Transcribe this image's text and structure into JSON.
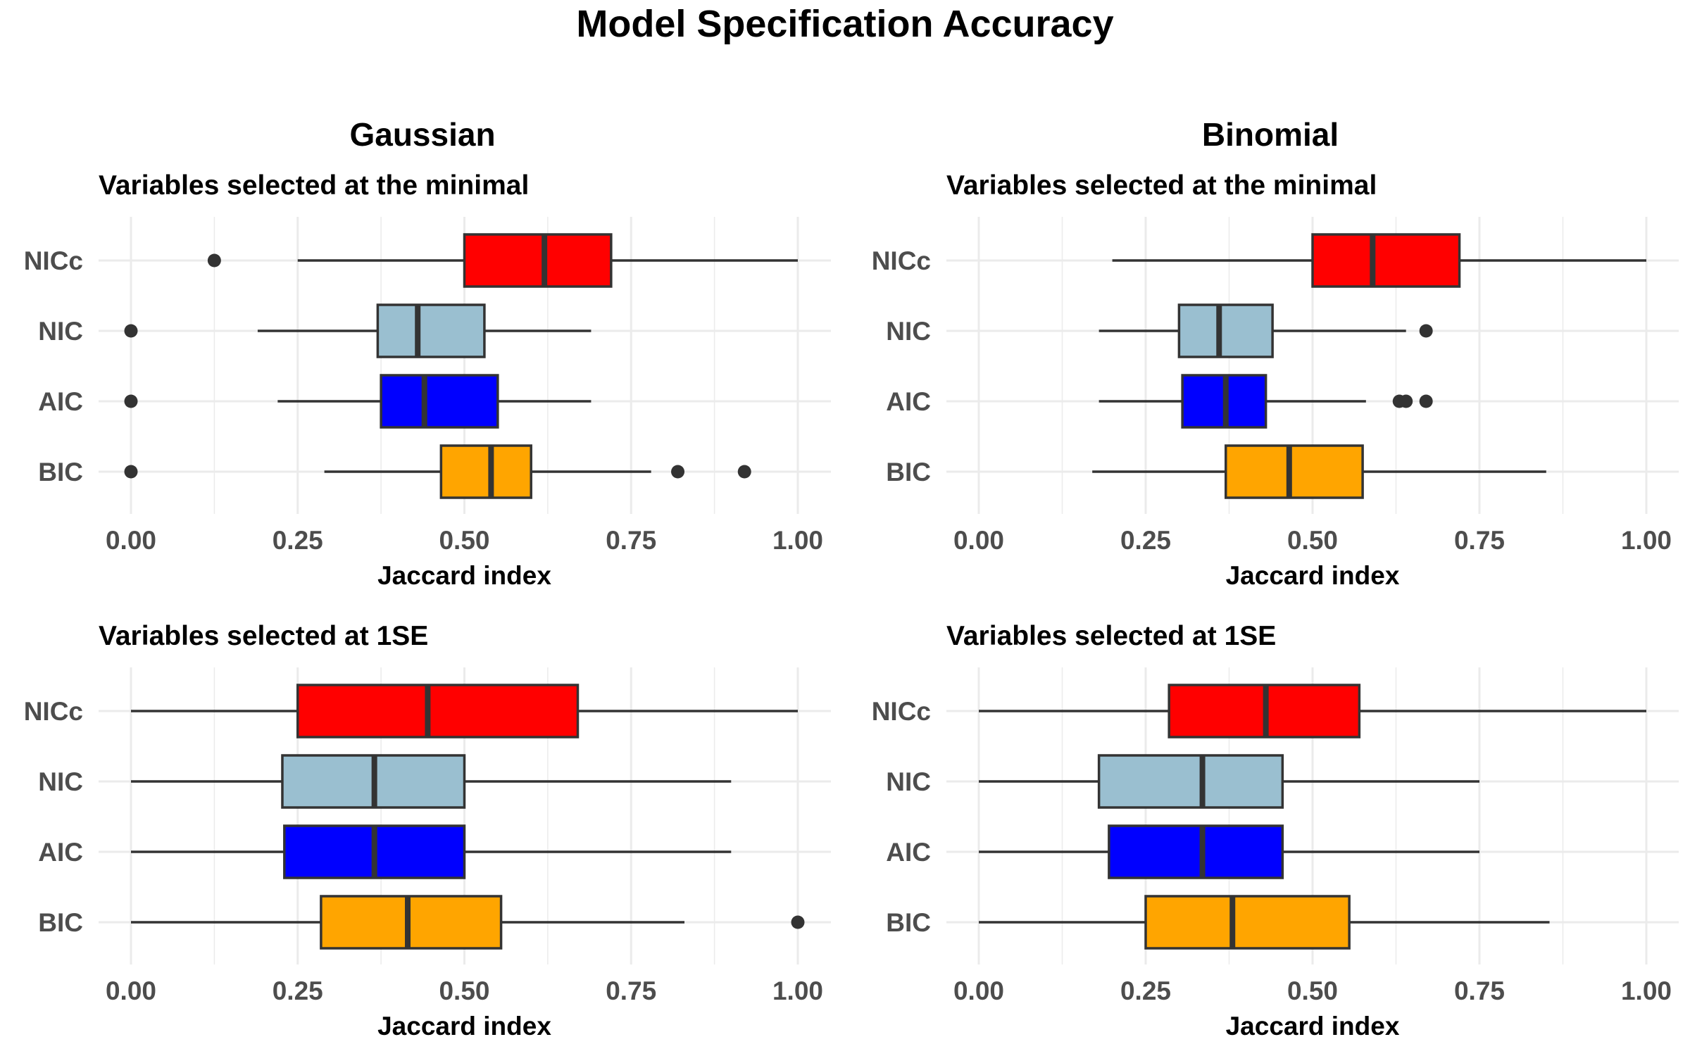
{
  "title": "Model Specification Accuracy",
  "columns": [
    "Gaussian",
    "Binomial"
  ],
  "colors": {
    "NICc": "#ff0000",
    "NIC": "#9abfd0",
    "AIC": "#0000ff",
    "BIC": "#ffa500",
    "stroke": "#333333",
    "grid": "#ebebeb",
    "outlier": "#333333"
  },
  "chart_data": [
    {
      "type": "boxplot",
      "column": "Gaussian",
      "title": "Variables selected at the minimal",
      "xlabel": "Jaccard index",
      "ylabel": "",
      "xlim": [
        0,
        1
      ],
      "xticks": [
        "0.00",
        "0.25",
        "0.50",
        "0.75",
        "1.00"
      ],
      "categories": [
        "NICc",
        "NIC",
        "AIC",
        "BIC"
      ],
      "boxes": [
        {
          "name": "NICc",
          "whisker_low": 0.25,
          "q1": 0.5,
          "median": 0.62,
          "q3": 0.72,
          "whisker_high": 1.0,
          "outliers": [
            0.125
          ]
        },
        {
          "name": "NIC",
          "whisker_low": 0.19,
          "q1": 0.37,
          "median": 0.43,
          "q3": 0.53,
          "whisker_high": 0.69,
          "outliers": [
            0.0
          ]
        },
        {
          "name": "AIC",
          "whisker_low": 0.22,
          "q1": 0.375,
          "median": 0.44,
          "q3": 0.55,
          "whisker_high": 0.69,
          "outliers": [
            0.0
          ]
        },
        {
          "name": "BIC",
          "whisker_low": 0.29,
          "q1": 0.465,
          "median": 0.54,
          "q3": 0.6,
          "whisker_high": 0.78,
          "outliers": [
            0.0,
            0.82,
            0.92
          ]
        }
      ]
    },
    {
      "type": "boxplot",
      "column": "Binomial",
      "title": "Variables selected at the minimal",
      "xlabel": "Jaccard index",
      "ylabel": "",
      "xlim": [
        0,
        1
      ],
      "xticks": [
        "0.00",
        "0.25",
        "0.50",
        "0.75",
        "1.00"
      ],
      "categories": [
        "NICc",
        "NIC",
        "AIC",
        "BIC"
      ],
      "boxes": [
        {
          "name": "NICc",
          "whisker_low": 0.2,
          "q1": 0.5,
          "median": 0.59,
          "q3": 0.72,
          "whisker_high": 1.0,
          "outliers": []
        },
        {
          "name": "NIC",
          "whisker_low": 0.18,
          "q1": 0.3,
          "median": 0.36,
          "q3": 0.44,
          "whisker_high": 0.64,
          "outliers": [
            0.67
          ]
        },
        {
          "name": "AIC",
          "whisker_low": 0.18,
          "q1": 0.305,
          "median": 0.37,
          "q3": 0.43,
          "whisker_high": 0.58,
          "outliers": [
            0.63,
            0.64,
            0.67
          ]
        },
        {
          "name": "BIC",
          "whisker_low": 0.17,
          "q1": 0.37,
          "median": 0.465,
          "q3": 0.575,
          "whisker_high": 0.85,
          "outliers": []
        }
      ]
    },
    {
      "type": "boxplot",
      "column": "Gaussian",
      "title": "Variables selected at 1SE",
      "xlabel": "Jaccard index",
      "ylabel": "",
      "xlim": [
        0,
        1
      ],
      "xticks": [
        "0.00",
        "0.25",
        "0.50",
        "0.75",
        "1.00"
      ],
      "categories": [
        "NICc",
        "NIC",
        "AIC",
        "BIC"
      ],
      "boxes": [
        {
          "name": "NICc",
          "whisker_low": 0.0,
          "q1": 0.25,
          "median": 0.445,
          "q3": 0.67,
          "whisker_high": 1.0,
          "outliers": []
        },
        {
          "name": "NIC",
          "whisker_low": 0.0,
          "q1": 0.227,
          "median": 0.365,
          "q3": 0.5,
          "whisker_high": 0.9,
          "outliers": []
        },
        {
          "name": "AIC",
          "whisker_low": 0.0,
          "q1": 0.23,
          "median": 0.365,
          "q3": 0.5,
          "whisker_high": 0.9,
          "outliers": []
        },
        {
          "name": "BIC",
          "whisker_low": 0.0,
          "q1": 0.285,
          "median": 0.415,
          "q3": 0.555,
          "whisker_high": 0.83,
          "outliers": [
            1.0
          ]
        }
      ]
    },
    {
      "type": "boxplot",
      "column": "Binomial",
      "title": "Variables selected at 1SE",
      "xlabel": "Jaccard index",
      "ylabel": "",
      "xlim": [
        0,
        1
      ],
      "xticks": [
        "0.00",
        "0.25",
        "0.50",
        "0.75",
        "1.00"
      ],
      "categories": [
        "NICc",
        "NIC",
        "AIC",
        "BIC"
      ],
      "boxes": [
        {
          "name": "NICc",
          "whisker_low": 0.0,
          "q1": 0.285,
          "median": 0.43,
          "q3": 0.57,
          "whisker_high": 1.0,
          "outliers": []
        },
        {
          "name": "NIC",
          "whisker_low": 0.0,
          "q1": 0.18,
          "median": 0.335,
          "q3": 0.455,
          "whisker_high": 0.75,
          "outliers": []
        },
        {
          "name": "AIC",
          "whisker_low": 0.0,
          "q1": 0.195,
          "median": 0.335,
          "q3": 0.455,
          "whisker_high": 0.75,
          "outliers": []
        },
        {
          "name": "BIC",
          "whisker_low": 0.0,
          "q1": 0.25,
          "median": 0.38,
          "q3": 0.555,
          "whisker_high": 0.855,
          "outliers": []
        }
      ]
    }
  ]
}
